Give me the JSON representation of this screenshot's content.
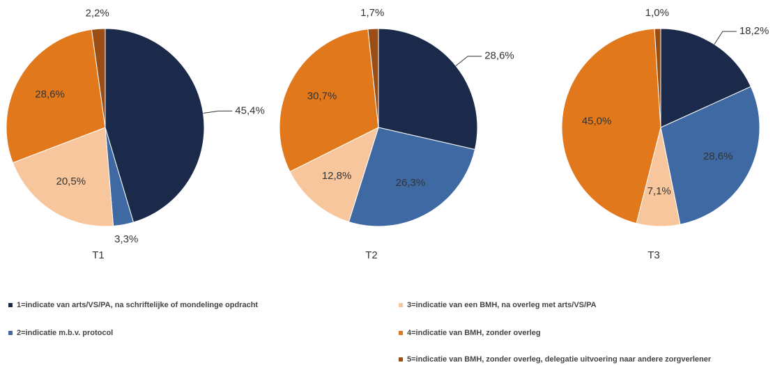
{
  "legend": [
    {
      "name": "1=indicate van arts/VS/PA, na schriftelijke of mondelinge opdracht",
      "color": "#1b2a4a"
    },
    {
      "name": "2=indicatie m.b.v. protocol",
      "color": "#3f69a2"
    },
    {
      "name": "3=indicatie van een BMH, na overleg met arts/VS/PA",
      "color": "#f7c69d"
    },
    {
      "name": "4=indicatie van BMH, zonder overleg",
      "color": "#e2781c"
    },
    {
      "name": "5=indicatie van BMH, zonder overleg, delegatie uitvoering naar andere zorgverlener",
      "color": "#9a4e16"
    }
  ],
  "chart_data": [
    {
      "type": "pie",
      "title": "T1",
      "values": [
        45.4,
        3.3,
        20.5,
        28.6,
        2.2
      ],
      "value_labels": [
        "45,4%",
        "3,3%",
        "20,5%",
        "28,6%",
        "2,2%"
      ]
    },
    {
      "type": "pie",
      "title": "T2",
      "values": [
        28.6,
        26.3,
        12.8,
        30.7,
        1.7
      ],
      "value_labels": [
        "28,6%",
        "26,3%",
        "12,8%",
        "30,7%",
        "1,7%"
      ]
    },
    {
      "type": "pie",
      "title": "T3",
      "values": [
        18.2,
        28.6,
        7.1,
        45.0,
        1.0
      ],
      "value_labels": [
        "18,2%",
        "28,6%",
        "7,1%",
        "45,0%",
        "1,0%"
      ]
    }
  ]
}
